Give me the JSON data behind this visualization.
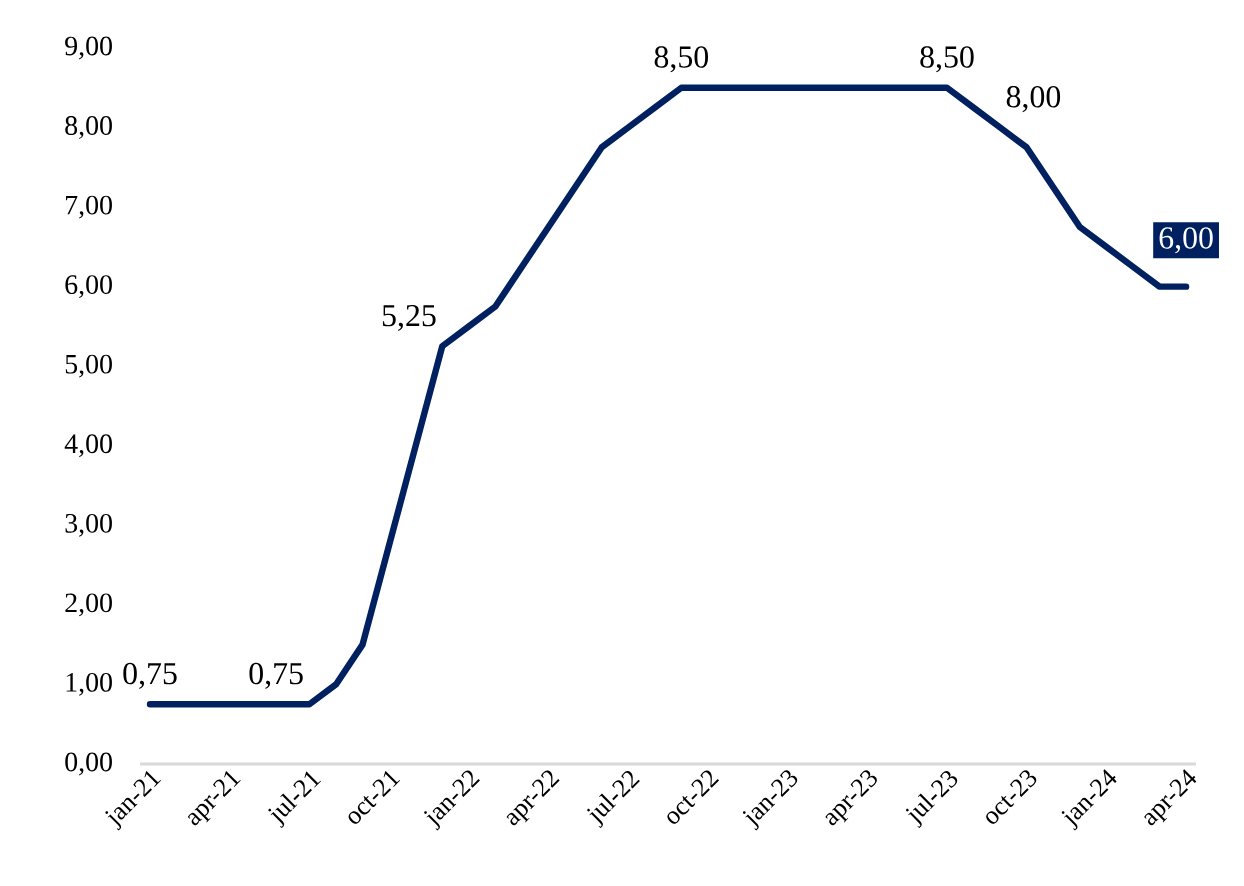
{
  "chart_data": {
    "type": "line",
    "categories": [
      "jan-21",
      null,
      null,
      "apr-21",
      null,
      null,
      "jul-21",
      null,
      null,
      "oct-21",
      null,
      null,
      "jan-22",
      null,
      null,
      "apr-22",
      null,
      null,
      "jul-22",
      null,
      null,
      "oct-22",
      null,
      null,
      "jan-23",
      null,
      null,
      "apr-23",
      null,
      null,
      "jul-23",
      null,
      null,
      "oct-23",
      null,
      null,
      "jan-24",
      null,
      null,
      "apr-24"
    ],
    "series": [
      {
        "color": "#002060",
        "values": [
          0.75,
          0.75,
          0.75,
          0.75,
          0.75,
          0.75,
          0.75,
          1.0,
          1.5,
          2.75,
          4.0,
          5.25,
          5.5,
          5.75,
          6.25,
          6.75,
          7.25,
          7.75,
          8.0,
          8.25,
          8.5,
          8.5,
          8.5,
          8.5,
          8.5,
          8.5,
          8.5,
          8.5,
          8.5,
          8.5,
          8.5,
          8.25,
          8.0,
          7.75,
          7.25,
          6.75,
          6.5,
          6.25,
          6.0,
          6.0
        ],
        "value_labels": [
          "0,75",
          null,
          null,
          null,
          null,
          null,
          "0,75",
          null,
          null,
          null,
          null,
          "5,25",
          null,
          null,
          null,
          null,
          null,
          null,
          null,
          null,
          "8,50",
          null,
          null,
          null,
          null,
          null,
          null,
          null,
          null,
          null,
          "8,50",
          null,
          "8,00",
          null,
          null,
          null,
          null,
          null,
          null,
          "6,00"
        ]
      }
    ],
    "ylim": [
      0,
      9
    ],
    "yticks": [
      {
        "value": 0,
        "label": "0,00"
      },
      {
        "value": 1,
        "label": "1,00"
      },
      {
        "value": 2,
        "label": "2,00"
      },
      {
        "value": 3,
        "label": "3,00"
      },
      {
        "value": 4,
        "label": "4,00"
      },
      {
        "value": 5,
        "label": "5,00"
      },
      {
        "value": 6,
        "label": "6,00"
      },
      {
        "value": 7,
        "label": "7,00"
      },
      {
        "value": 8,
        "label": "8,00"
      },
      {
        "value": 9,
        "label": "9,00"
      }
    ],
    "grid": false,
    "legend": false,
    "marker": "none",
    "line_style": "solid"
  }
}
